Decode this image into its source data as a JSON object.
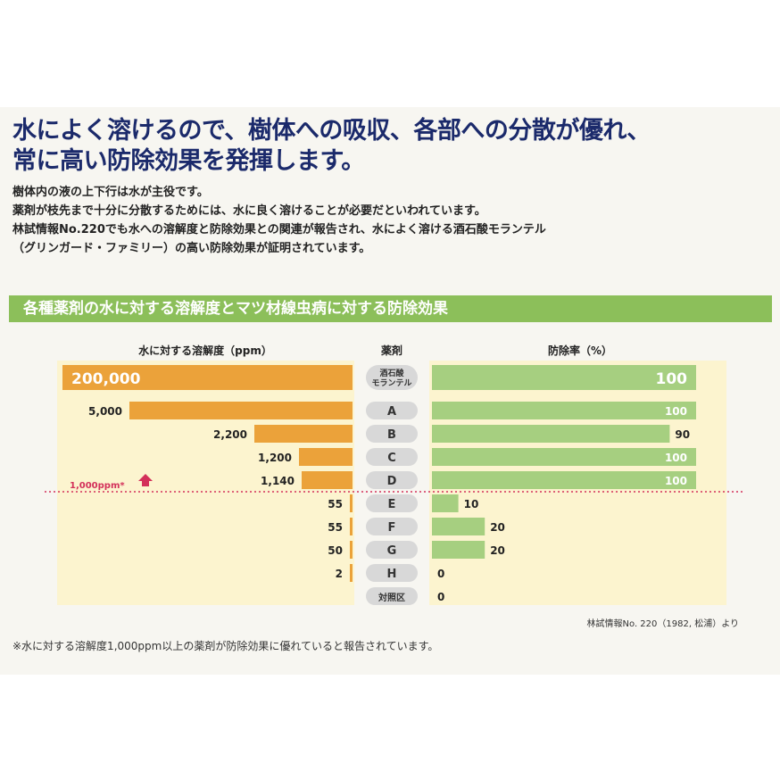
{
  "header": {
    "headline_line1": "水によく溶けるので、樹体への吸収、各部への分散が優れ、",
    "headline_line2": "常に高い防除効果を発揮します。"
  },
  "body": {
    "lines": [
      "樹体内の液の上下行は水が主役です。",
      "薬剤が枝先まで十分に分散するためには、水に良く溶けることが必要だといわれています。",
      "林試情報No.220でも水への溶解度と防除効果との関連が報告され、水によく溶ける酒石酸モランテル",
      "（グリンガード・ファミリー）の高い防除効果が証明されています。"
    ]
  },
  "section": {
    "title": "各種薬剤の水に対する溶解度とマツ材線虫病に対する防除効果"
  },
  "chart_data": {
    "type": "bar",
    "columns": {
      "solubility": "水に対する溶解度（ppm）",
      "agent": "薬剤",
      "efficacy": "防除率（%）"
    },
    "categories": [
      "酒石酸\nモランテル",
      "A",
      "B",
      "C",
      "D",
      "E",
      "F",
      "G",
      "H",
      "対照区"
    ],
    "series": [
      {
        "name": "水に対する溶解度（ppm）",
        "values": [
          200000,
          5000,
          2200,
          1200,
          1140,
          55,
          55,
          50,
          2,
          null
        ],
        "labels": [
          "200,000",
          "5,000",
          "2,200",
          "1,200",
          "1,140",
          "55",
          "55",
          "50",
          "2",
          ""
        ]
      },
      {
        "name": "防除率（%）",
        "values": [
          100,
          100,
          90,
          100,
          100,
          10,
          20,
          20,
          0,
          0
        ],
        "labels": [
          "100",
          "100",
          "90",
          "100",
          "100",
          "10",
          "20",
          "20",
          "0",
          "0"
        ]
      }
    ],
    "threshold": {
      "value": 1000,
      "label": "1,000ppm*"
    },
    "colors": {
      "solubility": "#eba23a",
      "efficacy": "#a6cf80",
      "threshold": "#d3305a",
      "pill": "#d8d8d8"
    }
  },
  "source": "林試情報No. 220（1982, 松浦）より",
  "footnote": "※水に対する溶解度1,000ppm以上の薬剤が防除効果に優れていると報告されています。"
}
